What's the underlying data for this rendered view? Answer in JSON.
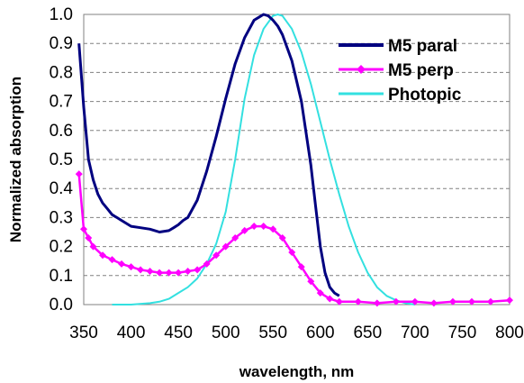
{
  "chart_data": {
    "type": "line",
    "xlabel": "wavelength, nm",
    "ylabel": "Normalized absorption",
    "xlim": [
      350,
      800
    ],
    "ylim": [
      0,
      1.0
    ],
    "xticks": [
      "350",
      "400",
      "450",
      "500",
      "550",
      "600",
      "650",
      "700",
      "750",
      "800"
    ],
    "yticks": [
      "0.0",
      "0.1",
      "0.2",
      "0.3",
      "0.4",
      "0.5",
      "0.6",
      "0.7",
      "0.8",
      "0.9",
      "1.0"
    ],
    "grid": "horizontal dashed",
    "legend_position": "top-right",
    "series": [
      {
        "name": "M5 paral",
        "color": "#000080",
        "marker": "none",
        "x": [
          345,
          350,
          355,
          360,
          365,
          370,
          375,
          380,
          385,
          390,
          400,
          410,
          420,
          430,
          440,
          445,
          450,
          455,
          460,
          470,
          480,
          490,
          500,
          510,
          520,
          530,
          535,
          540,
          545,
          550,
          555,
          560,
          570,
          580,
          590,
          595,
          600,
          605,
          610,
          615,
          620
        ],
        "y": [
          0.9,
          0.68,
          0.5,
          0.43,
          0.38,
          0.35,
          0.33,
          0.31,
          0.3,
          0.29,
          0.27,
          0.265,
          0.26,
          0.25,
          0.255,
          0.265,
          0.275,
          0.29,
          0.3,
          0.36,
          0.46,
          0.58,
          0.71,
          0.83,
          0.92,
          0.98,
          0.99,
          1.0,
          0.995,
          0.98,
          0.96,
          0.93,
          0.84,
          0.7,
          0.48,
          0.34,
          0.2,
          0.11,
          0.06,
          0.04,
          0.03
        ]
      },
      {
        "name": "M5 perp",
        "color": "#ff00ff",
        "marker": "diamond",
        "x": [
          345,
          350,
          355,
          360,
          370,
          380,
          390,
          400,
          410,
          420,
          430,
          440,
          450,
          460,
          470,
          480,
          490,
          500,
          510,
          520,
          530,
          540,
          550,
          560,
          570,
          580,
          590,
          600,
          610,
          620,
          640,
          660,
          680,
          700,
          720,
          740,
          760,
          780,
          800
        ],
        "y": [
          0.45,
          0.26,
          0.23,
          0.2,
          0.17,
          0.155,
          0.14,
          0.13,
          0.12,
          0.115,
          0.11,
          0.11,
          0.11,
          0.115,
          0.12,
          0.14,
          0.17,
          0.2,
          0.23,
          0.255,
          0.27,
          0.27,
          0.26,
          0.23,
          0.18,
          0.13,
          0.08,
          0.04,
          0.02,
          0.01,
          0.01,
          0.005,
          0.01,
          0.01,
          0.005,
          0.01,
          0.01,
          0.01,
          0.015
        ]
      },
      {
        "name": "Photopic",
        "color": "#33e0e0",
        "marker": "none",
        "x": [
          380,
          400,
          420,
          430,
          440,
          450,
          460,
          470,
          480,
          490,
          500,
          510,
          520,
          530,
          540,
          550,
          555,
          560,
          570,
          580,
          590,
          600,
          610,
          620,
          630,
          640,
          650,
          660,
          670,
          680,
          690,
          700
        ],
        "y": [
          0.0,
          0.0,
          0.005,
          0.01,
          0.02,
          0.04,
          0.06,
          0.09,
          0.14,
          0.21,
          0.32,
          0.5,
          0.71,
          0.86,
          0.95,
          0.995,
          1.0,
          0.995,
          0.95,
          0.87,
          0.76,
          0.63,
          0.5,
          0.38,
          0.27,
          0.18,
          0.11,
          0.06,
          0.03,
          0.015,
          0.005,
          0.0
        ]
      }
    ]
  }
}
